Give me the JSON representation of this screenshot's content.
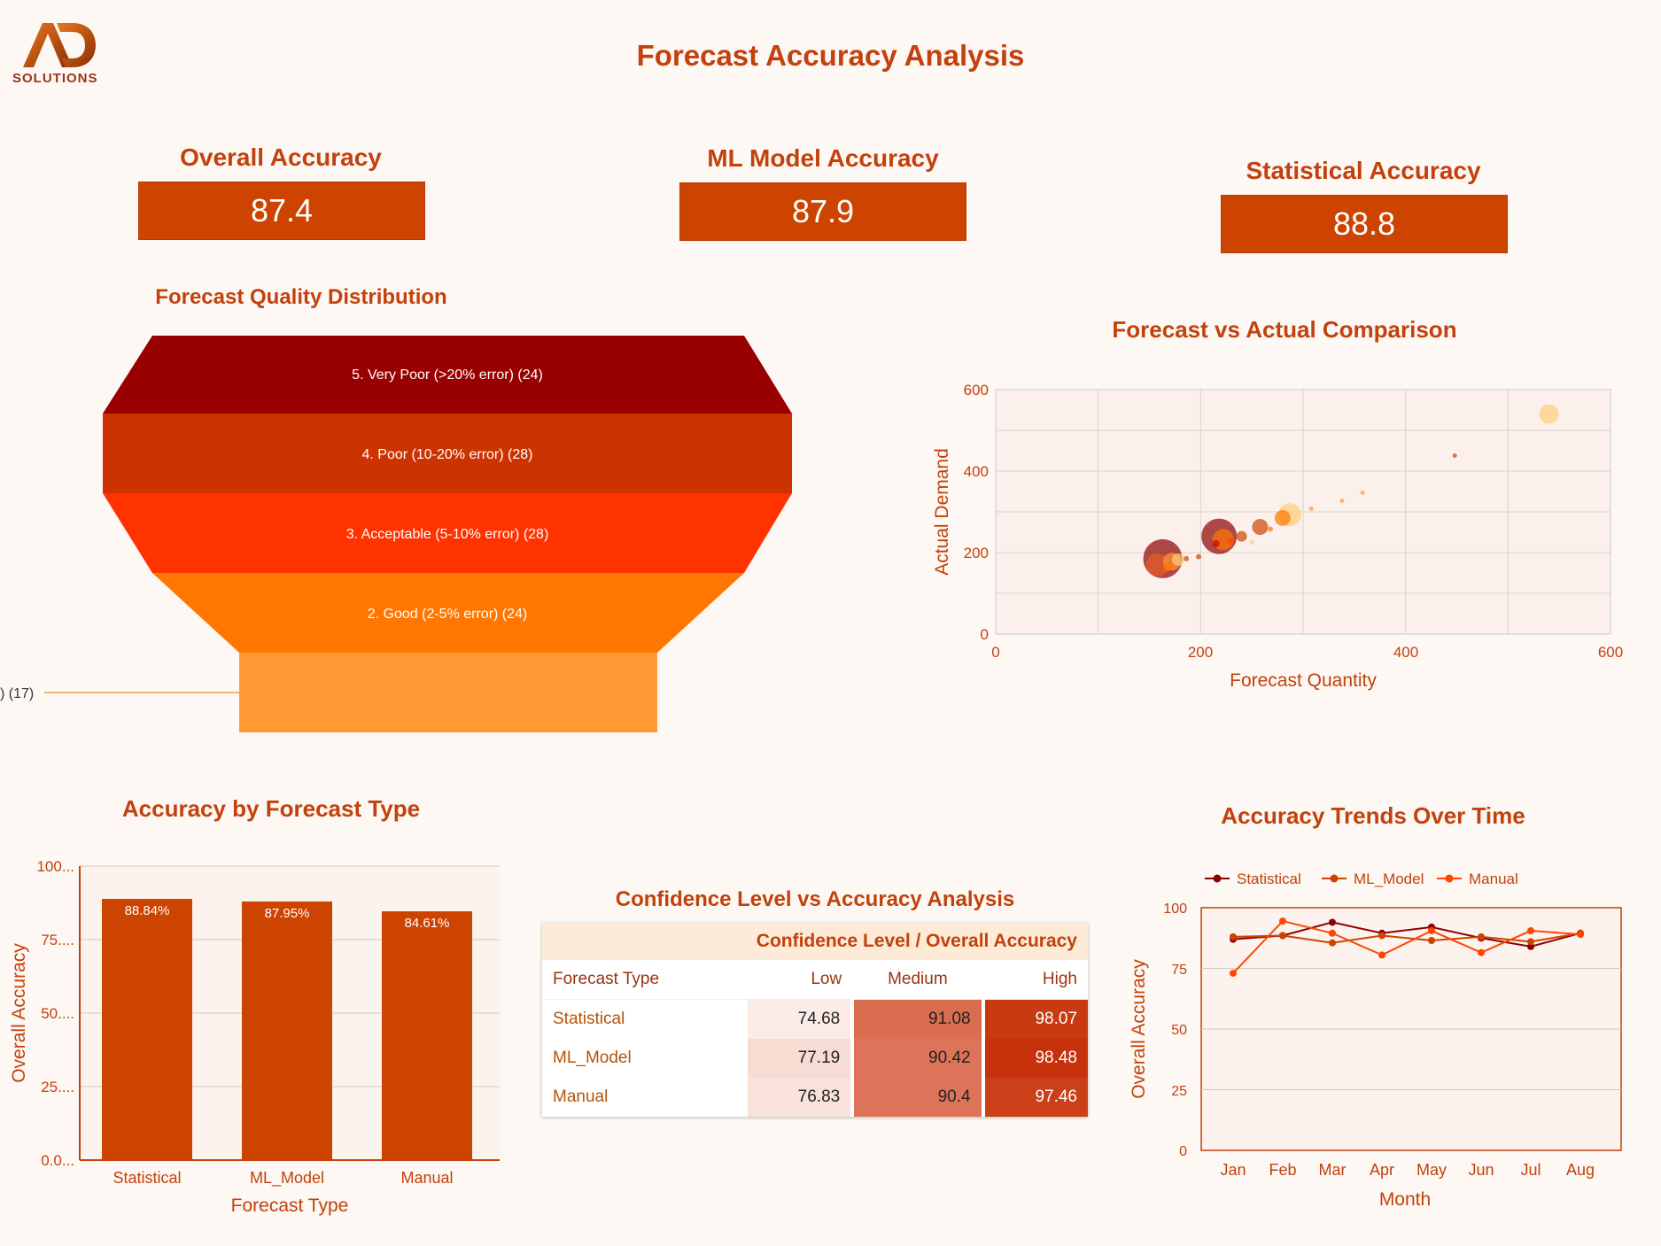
{
  "header": {
    "title": "Forecast Accuracy Analysis",
    "logo_text": "SOLUTIONS",
    "logo_letters": "AD"
  },
  "kpis": [
    {
      "label": "Overall Accuracy",
      "value": "87.4"
    },
    {
      "label": "ML Model Accuracy",
      "value": "87.9"
    },
    {
      "label": "Statistical Accuracy",
      "value": "88.8"
    }
  ],
  "colors": {
    "accent": "#cc4400",
    "title": "#c2410c",
    "background": "#fdf8f4",
    "funnel": [
      "#990000",
      "#cc3300",
      "#ff3300",
      "#ff7700",
      "#ff9933"
    ],
    "series": [
      "#8b0000",
      "#cc4400",
      "#ff4500"
    ]
  },
  "funnel": {
    "title": "Forecast Quality Distribution",
    "stages": [
      {
        "label": "5. Very Poor (>20% error) (24)",
        "value": 24
      },
      {
        "label": "4. Poor (10-20% error) (28)",
        "value": 28
      },
      {
        "label": "3. Acceptable (5-10% error) (28)",
        "value": 28
      },
      {
        "label": "2. Good (2-5% error) (24)",
        "value": 24
      },
      {
        "label": ") (17)",
        "value": 17
      }
    ]
  },
  "scatter": {
    "title": "Forecast vs Actual Comparison",
    "xlabel": "Forecast Quantity",
    "ylabel": "Actual Demand",
    "ticks_x": [
      "0",
      "200",
      "400",
      "600"
    ],
    "ticks_y": [
      "0",
      "200",
      "400",
      "600"
    ]
  },
  "bar": {
    "title": "Accuracy by Forecast Type",
    "xlabel": "Forecast Type",
    "ylabel": "Overall Accuracy",
    "ticks_y": [
      "0.0...",
      "25....",
      "50....",
      "75....",
      "100..."
    ]
  },
  "table": {
    "title": "Confidence Level vs Accuracy Analysis",
    "header": "Confidence Level / Overall Accuracy",
    "columns": [
      "Forecast Type",
      "Low",
      "Medium",
      "High"
    ],
    "rows": [
      {
        "type": "Statistical",
        "low": "74.68",
        "medium": "91.08",
        "high": "98.07"
      },
      {
        "type": "ML_Model",
        "low": "77.19",
        "medium": "90.42",
        "high": "98.48"
      },
      {
        "type": "Manual",
        "low": "76.83",
        "medium": "90.4",
        "high": "97.46"
      }
    ]
  },
  "line": {
    "title": "Accuracy Trends Over Time",
    "xlabel": "Month",
    "ylabel": "Overall Accuracy",
    "ticks_y": [
      "0",
      "25",
      "50",
      "75",
      "100"
    ]
  },
  "chart_data": [
    {
      "type": "funnel",
      "title": "Forecast Quality Distribution",
      "categories": [
        "5. Very Poor (>20% error)",
        "4. Poor (10-20% error)",
        "3. Acceptable (5-10% error)",
        "2. Good (2-5% error)",
        ")"
      ],
      "values": [
        24,
        28,
        28,
        24,
        17
      ]
    },
    {
      "type": "scatter",
      "title": "Forecast vs Actual Comparison",
      "xlabel": "Forecast Quantity",
      "ylabel": "Actual Demand",
      "xlim": [
        0,
        600
      ],
      "ylim": [
        0,
        600
      ],
      "grid": true,
      "points": [
        {
          "x": 163,
          "y": 185,
          "size": 44,
          "color": "#8b0000"
        },
        {
          "x": 158,
          "y": 170,
          "size": 26,
          "color": "#e85d2a"
        },
        {
          "x": 172,
          "y": 178,
          "size": 20,
          "color": "#ff9933"
        },
        {
          "x": 178,
          "y": 183,
          "size": 14,
          "color": "#ffcc77"
        },
        {
          "x": 168,
          "y": 165,
          "size": 10,
          "color": "#ff7700"
        },
        {
          "x": 218,
          "y": 240,
          "size": 40,
          "color": "#8b0000"
        },
        {
          "x": 222,
          "y": 232,
          "size": 24,
          "color": "#ff7700"
        },
        {
          "x": 215,
          "y": 222,
          "size": 8,
          "color": "#cc0000"
        },
        {
          "x": 230,
          "y": 228,
          "size": 8,
          "color": "#ff4500"
        },
        {
          "x": 198,
          "y": 190,
          "size": 6,
          "color": "#cc4400"
        },
        {
          "x": 186,
          "y": 185,
          "size": 6,
          "color": "#cc4400"
        },
        {
          "x": 240,
          "y": 240,
          "size": 12,
          "color": "#cc4400"
        },
        {
          "x": 250,
          "y": 225,
          "size": 5,
          "color": "#ffcc77"
        },
        {
          "x": 258,
          "y": 263,
          "size": 18,
          "color": "#cc4400"
        },
        {
          "x": 268,
          "y": 258,
          "size": 6,
          "color": "#ff7700"
        },
        {
          "x": 287,
          "y": 293,
          "size": 26,
          "color": "#ffcc77"
        },
        {
          "x": 280,
          "y": 285,
          "size": 18,
          "color": "#ff7700"
        },
        {
          "x": 308,
          "y": 308,
          "size": 5,
          "color": "#ff9933"
        },
        {
          "x": 338,
          "y": 327,
          "size": 5,
          "color": "#ff9933"
        },
        {
          "x": 358,
          "y": 347,
          "size": 5,
          "color": "#ff9933"
        },
        {
          "x": 448,
          "y": 438,
          "size": 5,
          "color": "#cc4400"
        },
        {
          "x": 540,
          "y": 540,
          "size": 22,
          "color": "#ffcc77"
        }
      ]
    },
    {
      "type": "bar",
      "title": "Accuracy by Forecast Type",
      "xlabel": "Forecast Type",
      "ylabel": "Overall Accuracy",
      "categories": [
        "Statistical",
        "ML_Model",
        "Manual"
      ],
      "values": [
        88.84,
        87.95,
        84.61
      ],
      "data_labels": [
        "88.84%",
        "87.95%",
        "84.61%"
      ],
      "ylim": [
        0,
        100
      ],
      "grid": true
    },
    {
      "type": "table",
      "title": "Confidence Level vs Accuracy Analysis",
      "columns": [
        "Forecast Type",
        "Low",
        "Medium",
        "High"
      ],
      "rows": [
        [
          "Statistical",
          74.68,
          91.08,
          98.07
        ],
        [
          "ML_Model",
          77.19,
          90.42,
          98.48
        ],
        [
          "Manual",
          76.83,
          90.4,
          97.46
        ]
      ]
    },
    {
      "type": "line",
      "title": "Accuracy Trends Over Time",
      "xlabel": "Month",
      "ylabel": "Overall Accuracy",
      "categories": [
        "Jan",
        "Feb",
        "Mar",
        "Apr",
        "May",
        "Jun",
        "Jul",
        "Aug"
      ],
      "ylim": [
        0,
        100
      ],
      "grid": true,
      "legend": "top-left",
      "series": [
        {
          "name": "Statistical",
          "values": [
            87,
            88.5,
            94,
            89.5,
            92,
            87.5,
            84,
            89.5
          ]
        },
        {
          "name": "ML_Model",
          "values": [
            88,
            88.5,
            85.5,
            88.5,
            86.5,
            88,
            86,
            89.5
          ]
        },
        {
          "name": "Manual",
          "values": [
            73,
            94.5,
            89.5,
            80.5,
            90.5,
            81.5,
            90.5,
            89
          ]
        }
      ]
    }
  ]
}
